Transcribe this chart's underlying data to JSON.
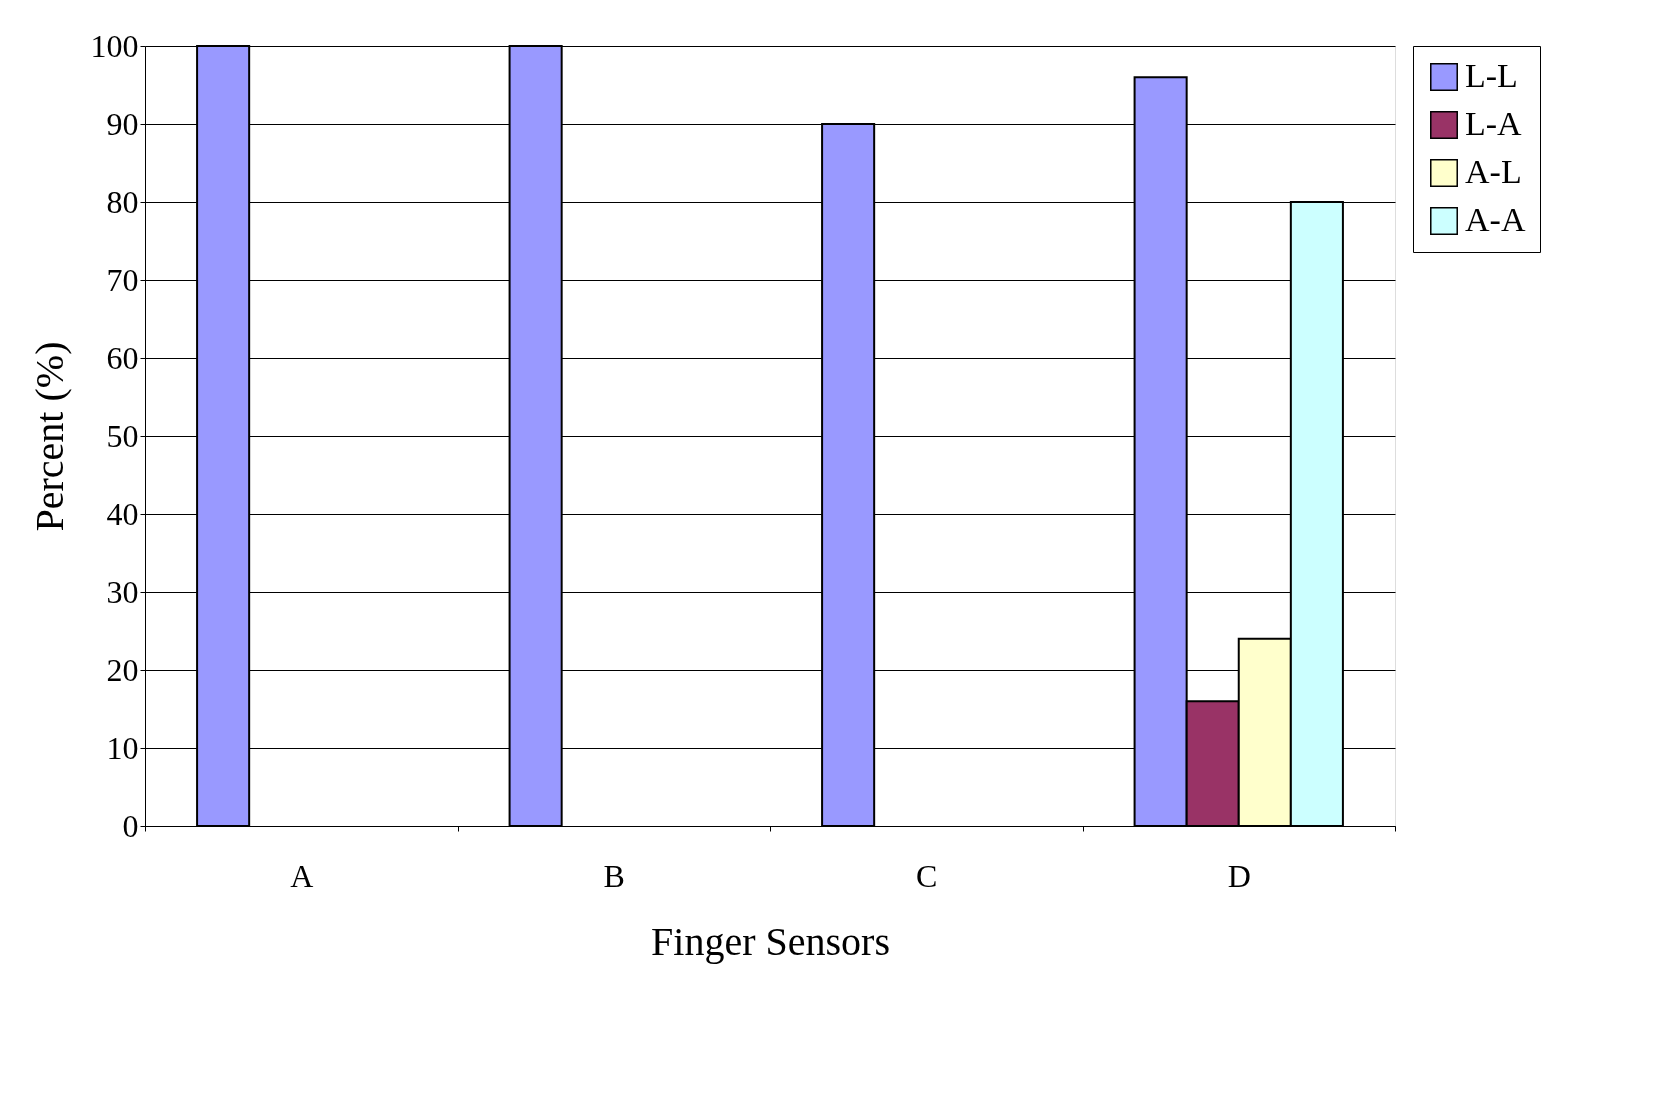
{
  "chart_data": {
    "type": "bar",
    "xlabel": "Finger Sensors",
    "ylabel": "Percent (%)",
    "categories": [
      "A",
      "B",
      "C",
      "D"
    ],
    "series": [
      {
        "name": "L-L",
        "color": "#9999ff",
        "values": [
          100,
          100,
          90,
          96
        ]
      },
      {
        "name": "L-A",
        "color": "#993366",
        "values": [
          null,
          null,
          null,
          16
        ]
      },
      {
        "name": "A-L",
        "color": "#ffffcc",
        "values": [
          null,
          null,
          null,
          24
        ]
      },
      {
        "name": "A-A",
        "color": "#ccffff",
        "values": [
          null,
          null,
          null,
          80
        ]
      }
    ],
    "ylim": [
      0,
      100
    ],
    "yticks": [
      0,
      10,
      20,
      30,
      40,
      50,
      60,
      70,
      80,
      90,
      100
    ],
    "grid": "y",
    "legend": "right"
  }
}
